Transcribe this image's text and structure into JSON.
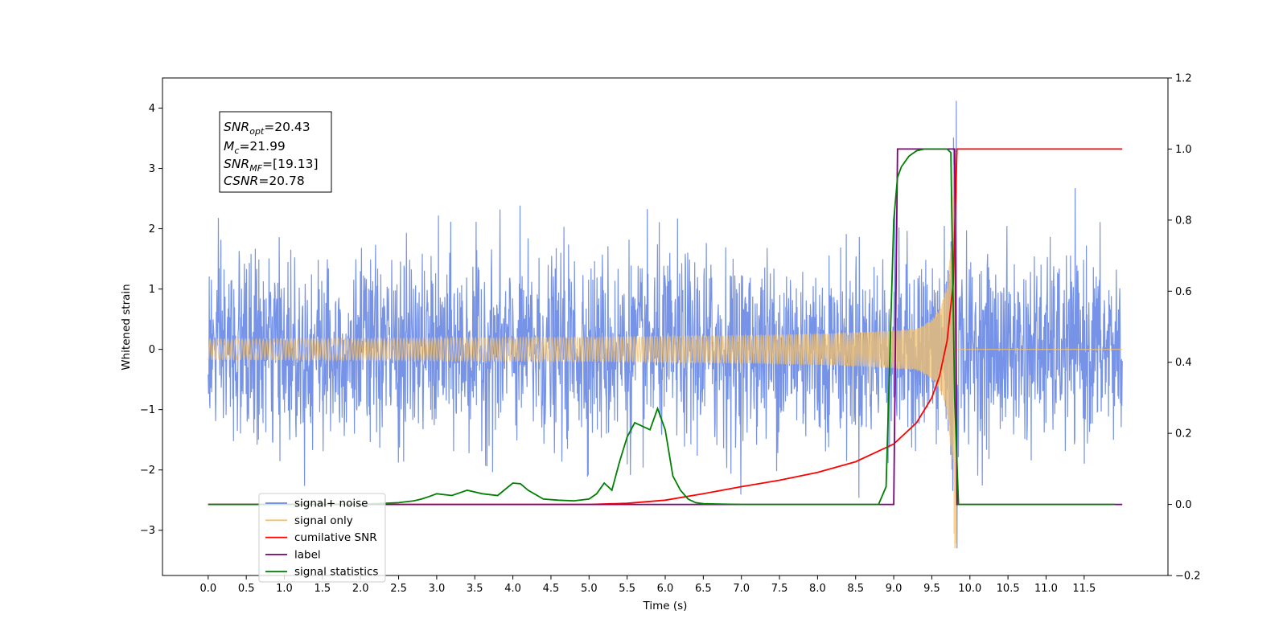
{
  "chart_data": {
    "type": "line",
    "xlabel": "Time (s)",
    "ylabel_left": "Whitened strain",
    "ylabel_right": "",
    "xlim": [
      -0.6,
      12.6
    ],
    "ylim_left": [
      -3.75,
      4.5
    ],
    "ylim_right": [
      -0.2,
      1.2
    ],
    "x_ticks": [
      "0.0",
      "0.5",
      "1.0",
      "1.5",
      "2.0",
      "2.5",
      "3.0",
      "3.5",
      "4.0",
      "4.5",
      "5.0",
      "5.5",
      "6.0",
      "6.5",
      "7.0",
      "7.5",
      "8.0",
      "8.5",
      "9.0",
      "9.5",
      "10.0",
      "10.5",
      "11.0",
      "11.5"
    ],
    "y_left_ticks": [
      "4",
      "3",
      "2",
      "1",
      "0",
      "−1",
      "−2",
      "−3"
    ],
    "y_right_ticks": [
      "1.2",
      "1.0",
      "0.8",
      "0.6",
      "0.4",
      "0.2",
      "0.0",
      "−0.2"
    ],
    "grid": false,
    "legend_position": "lower-left",
    "annotations": {
      "snr_opt_label": "SNR",
      "snr_opt_sub": "opt",
      "snr_opt_value": "=20.43",
      "mc_label": "M",
      "mc_sub": "c",
      "mc_value": "=21.99",
      "snr_mf_label": "SNR",
      "snr_mf_sub": "MF",
      "snr_mf_value": "=[19.13]",
      "csnr_label": "CSNR",
      "csnr_value": "=20.78"
    },
    "series": [
      {
        "name": "signal+ noise",
        "axis": "left",
        "color": "#6a8ae6",
        "description_values": {
          "x_range": [
            0,
            12
          ],
          "amplitude_std": 0.75,
          "peak": 4.12,
          "trough": -3.3
        }
      },
      {
        "name": "signal only",
        "axis": "left",
        "color": "#f5c26b",
        "chirp": {
          "start": 0,
          "end": 9.83,
          "merger": 9.82,
          "max_amplitude": 3.3,
          "post_merger_value": 0
        }
      },
      {
        "name": "cumilative SNR",
        "axis": "right",
        "color": "#ff0000",
        "x": [
          0,
          3.0,
          5.0,
          5.5,
          6.0,
          6.5,
          7.0,
          7.5,
          8.0,
          8.5,
          9.0,
          9.3,
          9.5,
          9.6,
          9.7,
          9.78,
          9.82,
          9.83,
          12.0
        ],
        "y": [
          0,
          0,
          0,
          0.003,
          0.012,
          0.03,
          0.05,
          0.068,
          0.09,
          0.12,
          0.17,
          0.23,
          0.3,
          0.36,
          0.46,
          0.62,
          0.92,
          1.0,
          1.0
        ]
      },
      {
        "name": "label",
        "axis": "right",
        "color": "#800080",
        "x": [
          0,
          9.0,
          9.05,
          9.8,
          9.83,
          12.0
        ],
        "y": [
          0,
          0,
          1.0,
          1.0,
          0,
          0
        ]
      },
      {
        "name": "signal statistics",
        "axis": "right",
        "color": "#008000",
        "x": [
          0,
          1.0,
          2.0,
          2.5,
          2.7,
          2.8,
          2.9,
          3.0,
          3.2,
          3.4,
          3.5,
          3.6,
          3.8,
          4.0,
          4.1,
          4.2,
          4.4,
          4.6,
          4.8,
          5.0,
          5.1,
          5.2,
          5.3,
          5.4,
          5.5,
          5.6,
          5.7,
          5.8,
          5.9,
          6.0,
          6.1,
          6.2,
          6.3,
          6.4,
          6.5,
          7.0,
          8.0,
          8.8,
          8.9,
          9.0,
          9.05,
          9.1,
          9.2,
          9.3,
          9.4,
          9.6,
          9.7,
          9.75,
          9.8,
          9.85,
          9.9,
          11.9
        ],
        "y": [
          0,
          0,
          0,
          0.005,
          0.01,
          0.015,
          0.022,
          0.03,
          0.025,
          0.04,
          0.035,
          0.03,
          0.025,
          0.06,
          0.058,
          0.04,
          0.015,
          0.012,
          0.01,
          0.015,
          0.03,
          0.06,
          0.04,
          0.12,
          0.19,
          0.23,
          0.22,
          0.21,
          0.27,
          0.21,
          0.08,
          0.04,
          0.015,
          0.005,
          0.002,
          0,
          0,
          0,
          0.05,
          0.8,
          0.92,
          0.95,
          0.98,
          0.995,
          1.0,
          1.0,
          1.0,
          0.99,
          0.3,
          0.0,
          0,
          0
        ]
      }
    ]
  }
}
